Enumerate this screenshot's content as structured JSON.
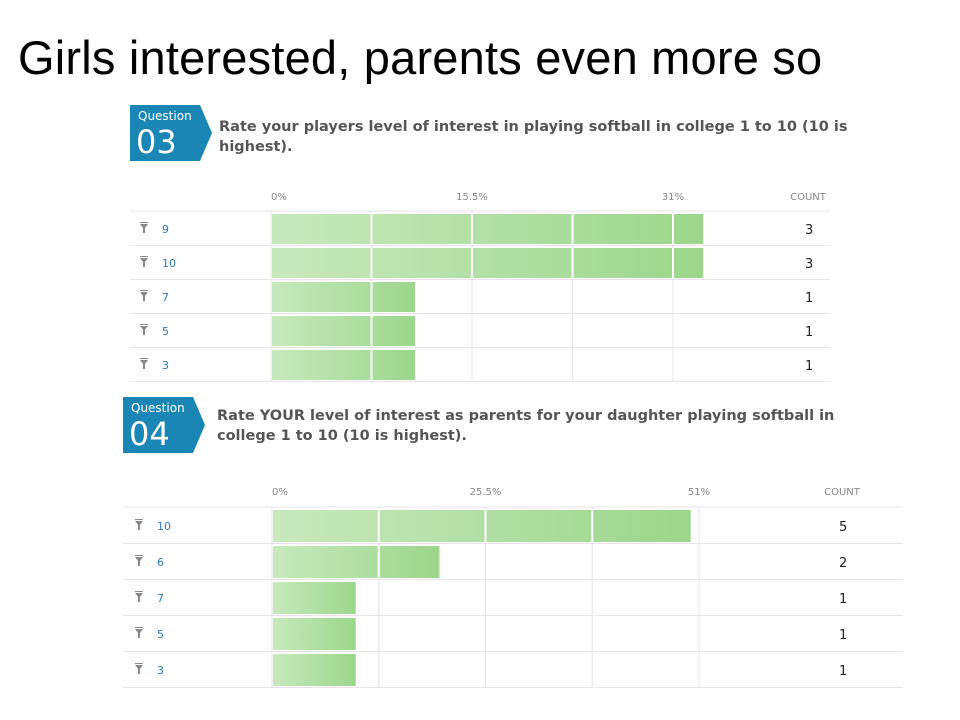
{
  "slide": {
    "title": "Girls interested, parents even more so"
  },
  "chart_data": [
    {
      "type": "bar",
      "question_label": "Question",
      "question_number": "03",
      "title": "Rate your players level of interest in playing softball in college 1 to 10 (10 is highest).",
      "title_lines": [
        "Rate your players level of interest in playing softball in college 1 to 10 (10 is",
        "highest)."
      ],
      "categories": [
        "9",
        "10",
        "7",
        "5",
        "3"
      ],
      "values": [
        3,
        3,
        1,
        1,
        1
      ],
      "percent_max": 31,
      "tick_labels": [
        "0%",
        "15.5%",
        "31%"
      ],
      "count_header": "COUNT",
      "grid": true,
      "color": "#9fd88f"
    },
    {
      "type": "bar",
      "question_label": "Question",
      "question_number": "04",
      "title": "Rate YOUR level of interest as parents for your daughter playing softball in college 1 to 10 (10 is highest).",
      "title_lines": [
        "Rate YOUR level of interest as parents for your daughter playing softball in",
        "college 1 to 10 (10 is highest)."
      ],
      "categories": [
        "10",
        "6",
        "7",
        "5",
        "3"
      ],
      "values": [
        5,
        2,
        1,
        1,
        1
      ],
      "percent_max": 51,
      "tick_labels": [
        "0%",
        "25.5%",
        "51%"
      ],
      "count_header": "COUNT",
      "grid": true,
      "color": "#9fd88f"
    }
  ]
}
